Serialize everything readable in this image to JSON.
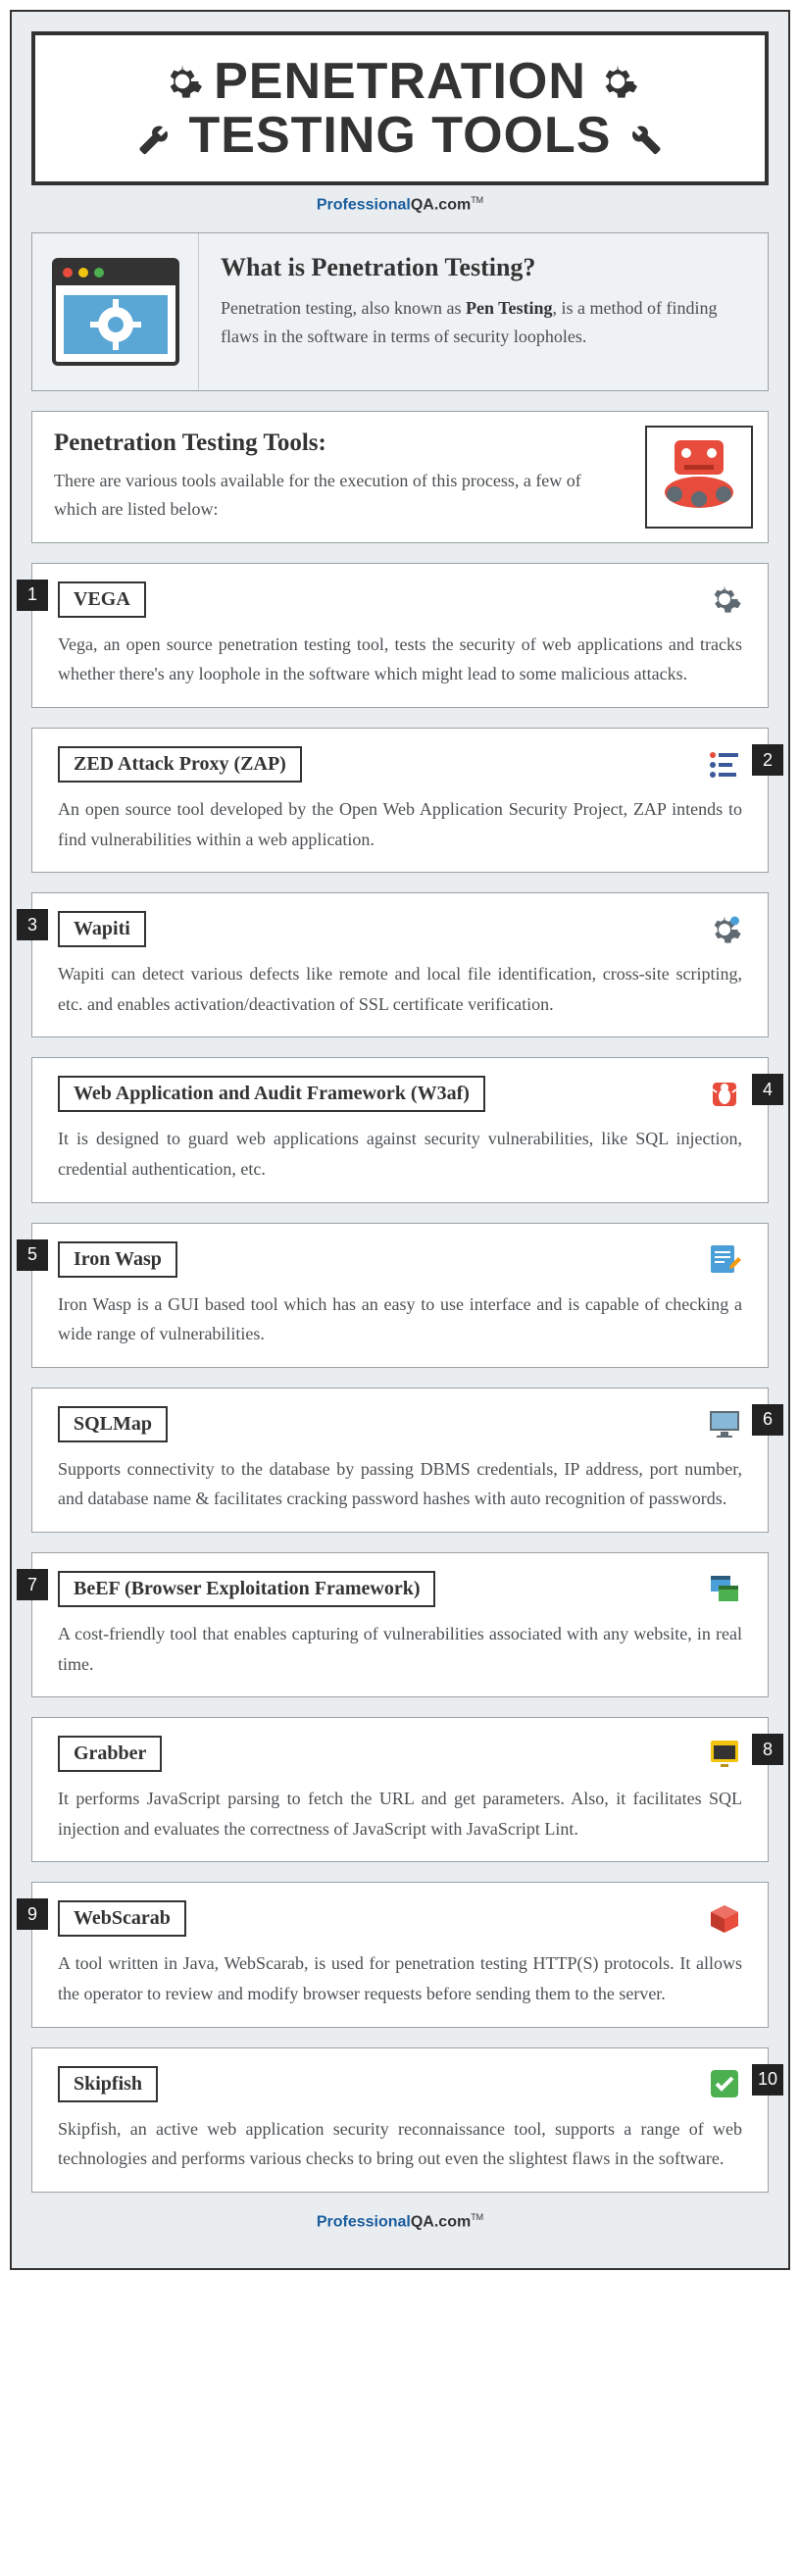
{
  "title": {
    "line1": "PENETRATION",
    "line2": "TESTING TOOLS"
  },
  "brand": {
    "p": "Professional",
    "qa": "QA.com",
    "tm": "TM"
  },
  "intro": {
    "heading": "What is Penetration Testing?",
    "text_before": "Penetration testing, also known as ",
    "bold": "Pen Testing",
    "text_after": ", is a method of finding flaws in the software in terms of security loopholes."
  },
  "tools_intro": {
    "heading": "Penetration Testing Tools:",
    "text": "There are various tools available for the execution of this process, a few of which are listed below:"
  },
  "tools": [
    {
      "num": "1",
      "side": "left",
      "name": "VEGA",
      "icon": "gear",
      "desc": "Vega, an open source penetration testing tool, tests the security of web applications and tracks whether there's any loophole in the software which might lead to some malicious attacks."
    },
    {
      "num": "2",
      "side": "right",
      "name": "ZED Attack Proxy (ZAP)",
      "icon": "bars",
      "desc": "An open source tool developed by the Open Web Application Security Project, ZAP intends to find vulnerabilities within a web application."
    },
    {
      "num": "3",
      "side": "left",
      "name": "Wapiti",
      "icon": "gear2",
      "desc": "Wapiti can detect various defects like remote and local file identification, cross-site scripting, etc. and enables activation/deactivation of SSL certificate verification."
    },
    {
      "num": "4",
      "side": "right",
      "name": "Web Application and Audit Framework (W3af)",
      "icon": "bug",
      "desc": "It is designed to guard web applications against security vulnerabilities, like SQL injection, credential authentication, etc."
    },
    {
      "num": "5",
      "side": "left",
      "name": "Iron Wasp",
      "icon": "note",
      "desc": "Iron Wasp is a GUI based tool which has an easy to use interface and is capable of checking a wide range of vulnerabilities."
    },
    {
      "num": "6",
      "side": "right",
      "name": "SQLMap",
      "icon": "monitor",
      "desc": "Supports connectivity to the database by passing DBMS credentials, IP address, port number, and database name & facilitates cracking password hashes with auto recognition of passwords."
    },
    {
      "num": "7",
      "side": "left",
      "name": "BeEF (Browser Exploitation Framework)",
      "icon": "windows",
      "desc": "A cost-friendly tool that enables capturing of vulnerabilities associated with any website, in real time."
    },
    {
      "num": "8",
      "side": "right",
      "name": "Grabber",
      "icon": "screen",
      "desc": "It performs JavaScript parsing to fetch the URL and get parameters. Also, it facilitates SQL injection and evaluates the correctness of JavaScript with JavaScript Lint."
    },
    {
      "num": "9",
      "side": "left",
      "name": "WebScarab",
      "icon": "box",
      "desc": "A tool written in Java, WebScarab, is used for penetration testing HTTP(S) protocols. It allows the operator to review and modify browser requests before sending them to the server."
    },
    {
      "num": "10",
      "side": "right",
      "name": "Skipfish",
      "icon": "check",
      "desc": "Skipfish, an active web application security reconnaissance tool, supports a range of web technologies and performs various checks to bring out even the slightest flaws in the software."
    }
  ],
  "colors": {
    "page_bg": "#e9edf0",
    "border": "#333333",
    "accent_blue": "#1a5d9e",
    "accent_red": "#e74c3c",
    "accent_green": "#4caf50",
    "icon_grey": "#5f6a72"
  }
}
